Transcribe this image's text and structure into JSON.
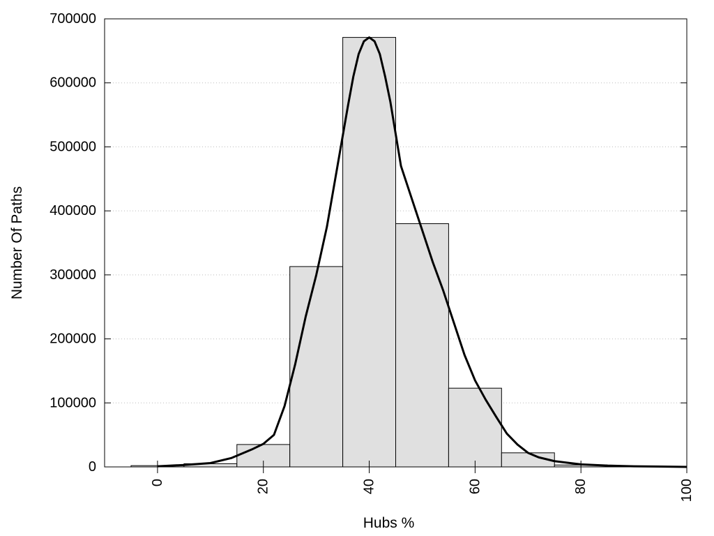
{
  "chart_data": {
    "type": "bar",
    "title": "",
    "xlabel": "Hubs %",
    "ylabel": "Number Of Paths",
    "xlim": [
      -10,
      100
    ],
    "ylim": [
      0,
      700000
    ],
    "x_ticks": [
      0,
      20,
      40,
      60,
      80,
      100
    ],
    "y_ticks": [
      0,
      100000,
      200000,
      300000,
      400000,
      500000,
      600000,
      700000
    ],
    "x_tick_labels": [
      "0",
      "20",
      "40",
      "60",
      "80",
      "100"
    ],
    "y_tick_labels": [
      "0",
      "100000",
      "200000",
      "300000",
      "400000",
      "500000",
      "600000",
      "700000"
    ],
    "grid": "horizontal dotted",
    "bar_color": "#e0e0e0",
    "bins": [
      {
        "x0": -5,
        "x1": 5,
        "value": 2000
      },
      {
        "x0": 5,
        "x1": 15,
        "value": 5000
      },
      {
        "x0": 15,
        "x1": 25,
        "value": 35000
      },
      {
        "x0": 25,
        "x1": 35,
        "value": 313000
      },
      {
        "x0": 35,
        "x1": 45,
        "value": 671000
      },
      {
        "x0": 45,
        "x1": 55,
        "value": 380000
      },
      {
        "x0": 55,
        "x1": 65,
        "value": 123000
      },
      {
        "x0": 65,
        "x1": 75,
        "value": 22000
      },
      {
        "x0": 75,
        "x1": 85,
        "value": 3000
      },
      {
        "x0": 85,
        "x1": 95,
        "value": 500
      }
    ],
    "curve": {
      "x": [
        0,
        5,
        10,
        14,
        18,
        20,
        22,
        24,
        26,
        28,
        30,
        32,
        34,
        36,
        37,
        38,
        39,
        40,
        41,
        42,
        43,
        44,
        45,
        46,
        48,
        50,
        52,
        54,
        56,
        58,
        60,
        62,
        64,
        66,
        68,
        70,
        72,
        75,
        80,
        85,
        90,
        95,
        100
      ],
      "y": [
        1000,
        3000,
        6000,
        14000,
        28000,
        36000,
        50000,
        95000,
        160000,
        235000,
        300000,
        375000,
        470000,
        565000,
        610000,
        645000,
        665000,
        671000,
        665000,
        645000,
        610000,
        570000,
        520000,
        470000,
        420000,
        370000,
        320000,
        275000,
        225000,
        175000,
        135000,
        105000,
        78000,
        52000,
        35000,
        22000,
        15000,
        9000,
        4000,
        2000,
        1000,
        500,
        0
      ]
    }
  }
}
